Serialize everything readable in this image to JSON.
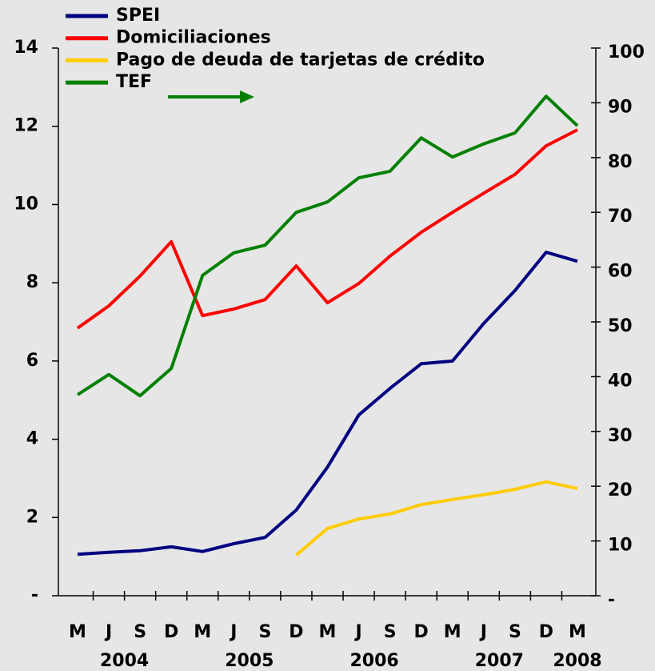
{
  "chart_data": {
    "type": "line",
    "categories": [
      "M",
      "J",
      "S",
      "D",
      "M",
      "J",
      "S",
      "D",
      "M",
      "J",
      "S",
      "D",
      "M",
      "J",
      "S",
      "D",
      "M"
    ],
    "years": [
      "2004",
      "2004",
      "2004",
      "2004",
      "2005",
      "2005",
      "2005",
      "2005",
      "2006",
      "2006",
      "2006",
      "2006",
      "2007",
      "2007",
      "2007",
      "2007",
      "2008"
    ],
    "series": [
      {
        "name": "SPEI",
        "color": "#000080",
        "values": [
          1.06,
          1.11,
          1.15,
          1.25,
          1.13,
          1.33,
          1.49,
          2.19,
          3.29,
          4.62,
          5.3,
          5.93,
          6.0,
          6.96,
          7.8,
          8.78,
          8.55
        ]
      },
      {
        "name": "Domiciliaciones",
        "color": "#ff0000",
        "values": [
          6.84,
          7.41,
          8.17,
          9.05,
          7.16,
          7.33,
          7.57,
          8.43,
          7.49,
          7.98,
          8.68,
          9.29,
          9.8,
          10.29,
          10.77,
          11.5,
          11.91
        ]
      },
      {
        "name": "Pago de deuda de tarjetas de crédito",
        "color": "#ffcc00",
        "values": [
          null,
          null,
          null,
          null,
          null,
          null,
          null,
          1.04,
          1.72,
          1.96,
          2.09,
          2.33,
          2.46,
          2.58,
          2.72,
          2.91,
          2.74
        ]
      },
      {
        "name": "TEF",
        "color": "#008000",
        "axis": "y2",
        "values": [
          36.7,
          40.4,
          36.5,
          41.5,
          58.5,
          62.6,
          64.0,
          70.0,
          71.9,
          76.3,
          77.5,
          83.6,
          80.1,
          82.5,
          84.5,
          91.2,
          85.8
        ]
      }
    ],
    "ylim": [
      0,
      14
    ],
    "yticks": [
      {
        "value": 0,
        "label": "-"
      },
      2,
      4,
      6,
      8,
      10,
      12,
      14
    ],
    "y2lim": [
      0,
      100
    ],
    "y2ticks": [
      {
        "value": 0,
        "label": "-"
      },
      10,
      20,
      30,
      40,
      50,
      60,
      70,
      80,
      90,
      100
    ]
  }
}
